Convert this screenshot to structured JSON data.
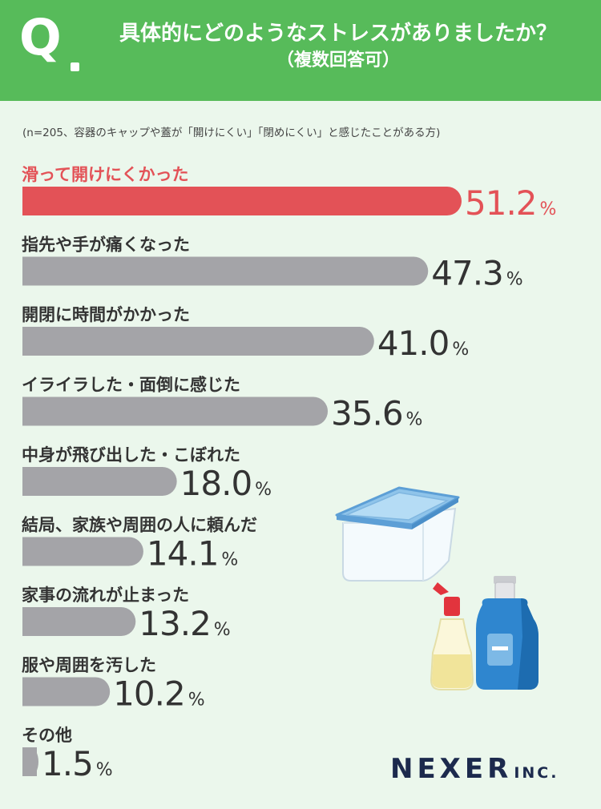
{
  "header": {
    "q_letter": "Q",
    "title": "具体的にどのようなストレスがありましたか？",
    "subtitle": "（複数回答可）"
  },
  "note": "(n=205、容器のキャップや蓋が「開けにくい」「閉めにくい」と感じたことがある方)",
  "brand": {
    "name": "NEXER",
    "suffix": "INC."
  },
  "colors": {
    "highlight": "#e35257",
    "bar": "#a4a4a8",
    "header": "#57bb5a",
    "background": "#ebf7ec"
  },
  "chart_data": {
    "type": "bar",
    "orientation": "horizontal",
    "unit": "%",
    "xlim": [
      0,
      51.2
    ],
    "categories": [
      "滑って開けにくかった",
      "指先や手が痛くなった",
      "開閉に時間がかかった",
      "イライラした・面倒に感じた",
      "中身が飛び出した・こぼれた",
      "結局、家族や周囲の人に頼んだ",
      "家事の流れが止まった",
      "服や周囲を汚した",
      "その他"
    ],
    "values": [
      51.2,
      47.3,
      41.0,
      35.6,
      18.0,
      14.1,
      13.2,
      10.2,
      1.5
    ],
    "labels": [
      "51.2",
      "47.3",
      "41.0",
      "35.6",
      "18.0",
      "14.1",
      "13.2",
      "10.2",
      "1.5"
    ],
    "highlight_index": 0
  }
}
